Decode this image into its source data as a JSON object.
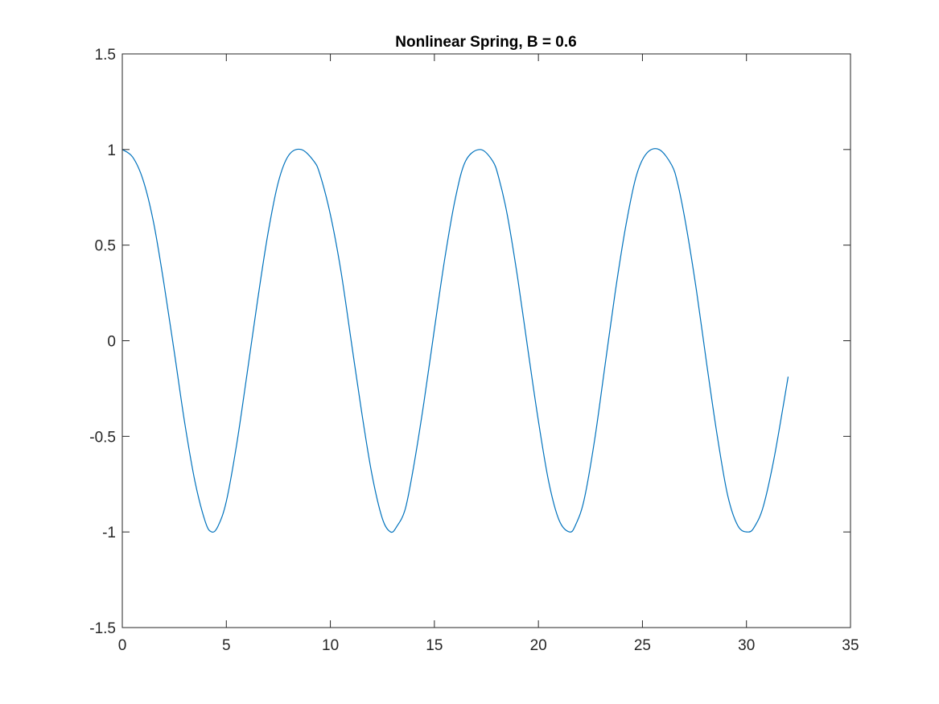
{
  "chart_data": {
    "type": "line",
    "title": "Nonlinear Spring, B = 0.6",
    "xlabel": "",
    "ylabel": "",
    "xlim": [
      0,
      35
    ],
    "ylim": [
      -1.5,
      1.5
    ],
    "xticks": [
      0,
      5,
      10,
      15,
      20,
      25,
      30,
      35
    ],
    "xtick_labels": [
      "0",
      "5",
      "10",
      "15",
      "20",
      "25",
      "30",
      "35"
    ],
    "yticks": [
      -1.5,
      -1,
      -0.5,
      0,
      0.5,
      1,
      1.5
    ],
    "ytick_labels": [
      "-1.5",
      "-1",
      "-0.5",
      "0",
      "0.5",
      "1",
      "1.5"
    ],
    "grid": false,
    "box": true,
    "series": [
      {
        "color": "#0072BD",
        "x": [
          0,
          0.5,
          1.0,
          1.5,
          2.0,
          2.5,
          3.0,
          3.5,
          4.0,
          4.3,
          4.6,
          5.0,
          5.5,
          6.0,
          6.5,
          7.0,
          7.5,
          8.0,
          8.6,
          9.2,
          9.5,
          10.0,
          10.5,
          11.0,
          11.5,
          12.0,
          12.5,
          12.9,
          13.2,
          13.6,
          14.0,
          14.5,
          15.0,
          15.5,
          16.0,
          16.5,
          17.2,
          17.8,
          18.1,
          18.5,
          19.0,
          19.5,
          20.0,
          20.5,
          21.0,
          21.5,
          21.8,
          22.2,
          22.7,
          23.2,
          23.7,
          24.2,
          24.7,
          25.2,
          25.8,
          26.4,
          26.7,
          27.1,
          27.6,
          28.1,
          28.6,
          29.1,
          29.6,
          30.1,
          30.4,
          30.8,
          31.3,
          31.8,
          32.0
        ],
        "y": [
          1.0,
          0.96,
          0.84,
          0.62,
          0.3,
          -0.06,
          -0.43,
          -0.74,
          -0.95,
          -1.0,
          -0.97,
          -0.84,
          -0.54,
          -0.17,
          0.21,
          0.56,
          0.83,
          0.97,
          1.0,
          0.94,
          0.87,
          0.66,
          0.37,
          0.0,
          -0.37,
          -0.7,
          -0.93,
          -1.0,
          -0.97,
          -0.88,
          -0.66,
          -0.32,
          0.06,
          0.43,
          0.74,
          0.94,
          1.0,
          0.94,
          0.85,
          0.66,
          0.33,
          -0.05,
          -0.42,
          -0.74,
          -0.94,
          -1.0,
          -0.96,
          -0.83,
          -0.52,
          -0.13,
          0.26,
          0.6,
          0.86,
          0.98,
          1.0,
          0.92,
          0.82,
          0.6,
          0.26,
          -0.13,
          -0.5,
          -0.81,
          -0.97,
          -1.0,
          -0.97,
          -0.87,
          -0.63,
          -0.32,
          -0.19
        ]
      }
    ]
  }
}
